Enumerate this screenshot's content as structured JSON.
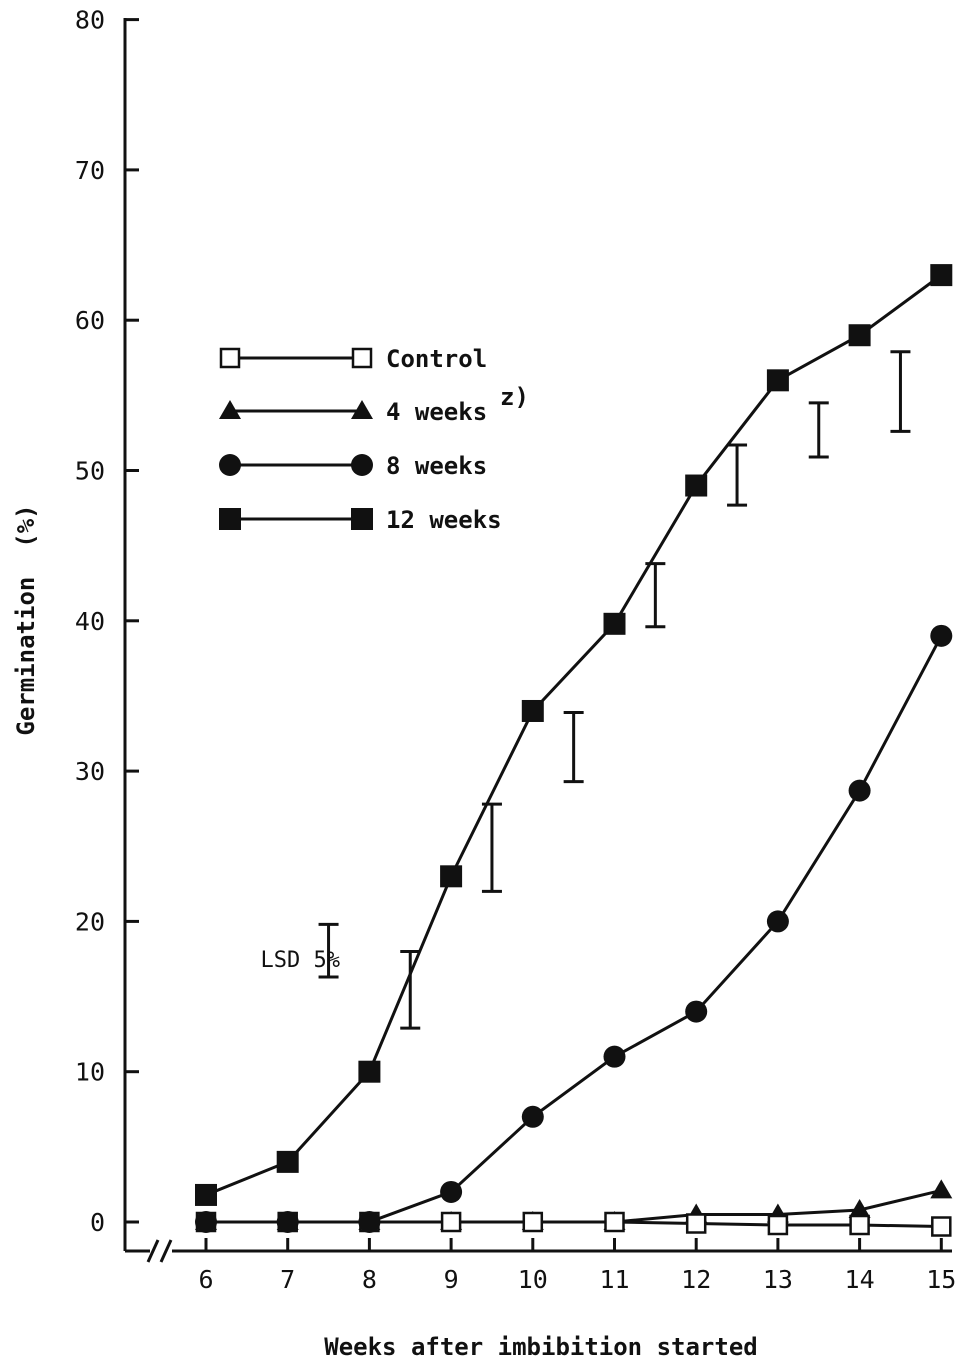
{
  "chart_data": {
    "type": "line",
    "title": "",
    "xlabel": "Weeks after imbibition started",
    "ylabel": "Germination  (%)",
    "x": [
      6,
      7,
      8,
      9,
      10,
      11,
      12,
      13,
      14,
      15
    ],
    "x_tick_labels": [
      "6",
      "7",
      "8",
      "9",
      "10",
      "11",
      "12",
      "13",
      "14",
      "15"
    ],
    "y_tick_values": [
      0,
      10,
      20,
      30,
      40,
      50,
      60,
      70,
      80
    ],
    "y_tick_labels": [
      "0",
      "10",
      "20",
      "30",
      "40",
      "50",
      "60",
      "70",
      "80"
    ],
    "xlim": [
      5,
      15
    ],
    "ylim": [
      -2,
      80
    ],
    "grid": false,
    "legend_position": "upper-left",
    "series": [
      {
        "name": "Control",
        "marker": "open-square",
        "values": [
          0,
          0,
          0,
          0,
          0,
          0,
          -0.1,
          -0.2,
          -0.2,
          -0.3
        ]
      },
      {
        "name": "4 weeks",
        "name_suffix": "z)",
        "marker": "filled-triangle",
        "values": [
          0,
          0,
          0,
          0,
          0,
          0,
          0.5,
          0.5,
          0.8,
          2.1
        ]
      },
      {
        "name": "8 weeks",
        "marker": "filled-circle",
        "values": [
          0,
          0,
          0,
          2,
          7,
          11,
          14,
          20,
          28.7,
          39
        ]
      },
      {
        "name": "12 weeks",
        "marker": "filled-square",
        "values": [
          1.8,
          4,
          10,
          23,
          34,
          39.8,
          49,
          56,
          59,
          63
        ]
      }
    ],
    "lsd": {
      "label": "LSD 5%",
      "bars": [
        {
          "x": 8,
          "low": 16.3,
          "high": 19.8
        },
        {
          "x": 9,
          "low": 12.9,
          "high": 18.0
        },
        {
          "x": 10,
          "low": 22.0,
          "high": 27.8
        },
        {
          "x": 11,
          "low": 29.3,
          "high": 33.9
        },
        {
          "x": 12,
          "low": 39.6,
          "high": 43.8
        },
        {
          "x": 13,
          "low": 47.7,
          "high": 51.7
        },
        {
          "x": 14,
          "low": 50.9,
          "high": 54.5
        },
        {
          "x": 15,
          "low": 52.6,
          "high": 57.9
        }
      ]
    }
  }
}
